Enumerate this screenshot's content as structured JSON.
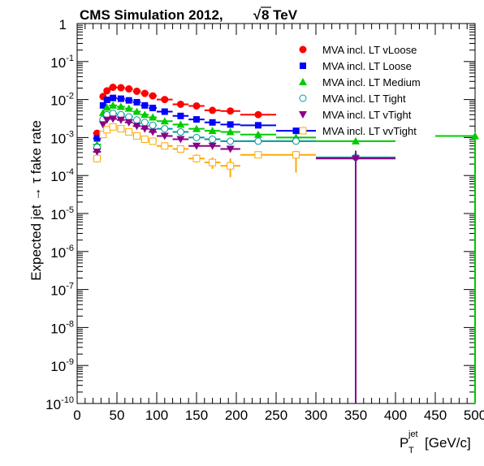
{
  "chart_data": {
    "type": "scatter",
    "title": "CMS Simulation 2012, ",
    "title_energy": "8 TeV",
    "title_root": "√",
    "ylabel": "Expected jet → τ fake rate",
    "xlabel_main": "P",
    "xlabel_sub": "T",
    "xlabel_sup": "jet",
    "xlabel_unit": "[GeV/c]",
    "xlim": [
      0,
      500
    ],
    "ylim_log10": [
      -10,
      0
    ],
    "yscale": "log",
    "grid": false,
    "legend_position": "top-right",
    "x_ticks": [
      "0",
      "50",
      "100",
      "150",
      "200",
      "250",
      "300",
      "350",
      "400",
      "450",
      "500"
    ],
    "y_ticks": [
      {
        "exp": 0,
        "base": "1",
        "sup": ""
      },
      {
        "exp": -1,
        "base": "10",
        "sup": "-1"
      },
      {
        "exp": -2,
        "base": "10",
        "sup": "-2"
      },
      {
        "exp": -3,
        "base": "10",
        "sup": "-3"
      },
      {
        "exp": -4,
        "base": "10",
        "sup": "-4"
      },
      {
        "exp": -5,
        "base": "10",
        "sup": "-5"
      },
      {
        "exp": -6,
        "base": "10",
        "sup": "-6"
      },
      {
        "exp": -7,
        "base": "10",
        "sup": "-7"
      },
      {
        "exp": -8,
        "base": "10",
        "sup": "-8"
      },
      {
        "exp": -9,
        "base": "10",
        "sup": "-9"
      },
      {
        "exp": -10,
        "base": "10",
        "sup": "-10"
      }
    ],
    "series": [
      {
        "name": "MVA incl. LT vLoose",
        "color": "#ff0000",
        "marker": "circle-filled",
        "points": [
          {
            "x": 25,
            "xlo": 20,
            "xhi": 30,
            "y": 0.0013,
            "ylo": 0.0011,
            "yhi": 0.0015
          },
          {
            "x": 32.5,
            "xlo": 30,
            "xhi": 35,
            "y": 0.012
          },
          {
            "x": 37.5,
            "xlo": 35,
            "xhi": 40,
            "y": 0.017
          },
          {
            "x": 45,
            "xlo": 40,
            "xhi": 50,
            "y": 0.021
          },
          {
            "x": 55,
            "xlo": 50,
            "xhi": 60,
            "y": 0.0205
          },
          {
            "x": 65,
            "xlo": 60,
            "xhi": 70,
            "y": 0.019
          },
          {
            "x": 75,
            "xlo": 70,
            "xhi": 80,
            "y": 0.0165
          },
          {
            "x": 85,
            "xlo": 80,
            "xhi": 90,
            "y": 0.0145
          },
          {
            "x": 95,
            "xlo": 90,
            "xhi": 100,
            "y": 0.0125
          },
          {
            "x": 110,
            "xlo": 100,
            "xhi": 120,
            "y": 0.01
          },
          {
            "x": 130,
            "xlo": 120,
            "xhi": 140,
            "y": 0.0075
          },
          {
            "x": 150,
            "xlo": 140,
            "xhi": 160,
            "y": 0.0068
          },
          {
            "x": 170,
            "xlo": 160,
            "xhi": 180,
            "y": 0.0052
          },
          {
            "x": 192.5,
            "xlo": 180,
            "xhi": 205,
            "y": 0.005
          },
          {
            "x": 227.5,
            "xlo": 205,
            "xhi": 250,
            "y": 0.004
          }
        ]
      },
      {
        "name": "MVA incl. LT Loose",
        "color": "#0000ff",
        "marker": "square-filled",
        "points": [
          {
            "x": 25,
            "xlo": 20,
            "xhi": 30,
            "y": 0.00095,
            "ylo": 0.0008,
            "yhi": 0.0011
          },
          {
            "x": 32.5,
            "xlo": 30,
            "xhi": 35,
            "y": 0.007
          },
          {
            "x": 37.5,
            "xlo": 35,
            "xhi": 40,
            "y": 0.0098
          },
          {
            "x": 45,
            "xlo": 40,
            "xhi": 50,
            "y": 0.011
          },
          {
            "x": 55,
            "xlo": 50,
            "xhi": 60,
            "y": 0.0105
          },
          {
            "x": 65,
            "xlo": 60,
            "xhi": 70,
            "y": 0.0095
          },
          {
            "x": 75,
            "xlo": 70,
            "xhi": 80,
            "y": 0.0085
          },
          {
            "x": 85,
            "xlo": 80,
            "xhi": 90,
            "y": 0.007
          },
          {
            "x": 95,
            "xlo": 90,
            "xhi": 100,
            "y": 0.006
          },
          {
            "x": 110,
            "xlo": 100,
            "xhi": 120,
            "y": 0.0048
          },
          {
            "x": 130,
            "xlo": 120,
            "xhi": 140,
            "y": 0.0037
          },
          {
            "x": 150,
            "xlo": 140,
            "xhi": 160,
            "y": 0.003
          },
          {
            "x": 170,
            "xlo": 160,
            "xhi": 180,
            "y": 0.0025
          },
          {
            "x": 192.5,
            "xlo": 180,
            "xhi": 205,
            "y": 0.0022
          },
          {
            "x": 227.5,
            "xlo": 205,
            "xhi": 250,
            "y": 0.0021
          },
          {
            "x": 275,
            "xlo": 250,
            "xhi": 300,
            "y": 0.0015
          }
        ]
      },
      {
        "name": "MVA incl. LT Medium",
        "color": "#00cc00",
        "marker": "triangle-up-filled",
        "points": [
          {
            "x": 25,
            "xlo": 20,
            "xhi": 30,
            "y": 0.00065,
            "ylo": 0.00055,
            "yhi": 0.00075
          },
          {
            "x": 32.5,
            "xlo": 30,
            "xhi": 35,
            "y": 0.0045
          },
          {
            "x": 37.5,
            "xlo": 35,
            "xhi": 40,
            "y": 0.0062
          },
          {
            "x": 45,
            "xlo": 40,
            "xhi": 50,
            "y": 0.007
          },
          {
            "x": 55,
            "xlo": 50,
            "xhi": 60,
            "y": 0.0065
          },
          {
            "x": 65,
            "xlo": 60,
            "xhi": 70,
            "y": 0.0058
          },
          {
            "x": 75,
            "xlo": 70,
            "xhi": 80,
            "y": 0.0048
          },
          {
            "x": 85,
            "xlo": 80,
            "xhi": 90,
            "y": 0.004
          },
          {
            "x": 95,
            "xlo": 90,
            "xhi": 100,
            "y": 0.0034
          },
          {
            "x": 110,
            "xlo": 100,
            "xhi": 120,
            "y": 0.0027
          },
          {
            "x": 130,
            "xlo": 120,
            "xhi": 140,
            "y": 0.0022
          },
          {
            "x": 150,
            "xlo": 140,
            "xhi": 160,
            "y": 0.0017
          },
          {
            "x": 170,
            "xlo": 160,
            "xhi": 180,
            "y": 0.0015
          },
          {
            "x": 192.5,
            "xlo": 180,
            "xhi": 205,
            "y": 0.0014
          },
          {
            "x": 227.5,
            "xlo": 205,
            "xhi": 250,
            "y": 0.0012
          },
          {
            "x": 275,
            "xlo": 250,
            "xhi": 300,
            "y": 0.001
          },
          {
            "x": 350,
            "xlo": 300,
            "xhi": 400,
            "y": 0.0008
          },
          {
            "x": 500,
            "xlo": 450,
            "xhi": 550,
            "y": 0.0011,
            "ylo": 1e-10,
            "yhi": 0.0011
          }
        ]
      },
      {
        "name": "MVA incl. LT Tight",
        "color": "#009999",
        "marker": "circle-open",
        "points": [
          {
            "x": 25,
            "xlo": 20,
            "xhi": 30,
            "y": 0.00055
          },
          {
            "x": 32.5,
            "xlo": 30,
            "xhi": 35,
            "y": 0.003
          },
          {
            "x": 37.5,
            "xlo": 35,
            "xhi": 40,
            "y": 0.004
          },
          {
            "x": 45,
            "xlo": 40,
            "xhi": 50,
            "y": 0.0043
          },
          {
            "x": 55,
            "xlo": 50,
            "xhi": 60,
            "y": 0.004
          },
          {
            "x": 65,
            "xlo": 60,
            "xhi": 70,
            "y": 0.0035
          },
          {
            "x": 75,
            "xlo": 70,
            "xhi": 80,
            "y": 0.0029
          },
          {
            "x": 85,
            "xlo": 80,
            "xhi": 90,
            "y": 0.0025
          },
          {
            "x": 95,
            "xlo": 90,
            "xhi": 100,
            "y": 0.0021
          },
          {
            "x": 110,
            "xlo": 100,
            "xhi": 120,
            "y": 0.0017
          },
          {
            "x": 130,
            "xlo": 120,
            "xhi": 140,
            "y": 0.0014
          },
          {
            "x": 150,
            "xlo": 140,
            "xhi": 160,
            "y": 0.001
          },
          {
            "x": 170,
            "xlo": 160,
            "xhi": 180,
            "y": 0.0009
          },
          {
            "x": 192.5,
            "xlo": 180,
            "xhi": 205,
            "y": 0.0008
          },
          {
            "x": 227.5,
            "xlo": 205,
            "xhi": 250,
            "y": 0.0008
          },
          {
            "x": 275,
            "xlo": 250,
            "xhi": 300,
            "y": 0.0008
          },
          {
            "x": 350,
            "xlo": 300,
            "xhi": 400,
            "y": 0.0003
          }
        ]
      },
      {
        "name": "MVA incl. LT vTight",
        "color": "#880088",
        "marker": "triangle-down-filled",
        "points": [
          {
            "x": 25,
            "xlo": 20,
            "xhi": 30,
            "y": 0.00042
          },
          {
            "x": 32.5,
            "xlo": 30,
            "xhi": 35,
            "y": 0.0022
          },
          {
            "x": 37.5,
            "xlo": 35,
            "xhi": 40,
            "y": 0.0029
          },
          {
            "x": 45,
            "xlo": 40,
            "xhi": 50,
            "y": 0.0031
          },
          {
            "x": 55,
            "xlo": 50,
            "xhi": 60,
            "y": 0.0029
          },
          {
            "x": 65,
            "xlo": 60,
            "xhi": 70,
            "y": 0.0025
          },
          {
            "x": 75,
            "xlo": 70,
            "xhi": 80,
            "y": 0.002
          },
          {
            "x": 85,
            "xlo": 80,
            "xhi": 90,
            "y": 0.0017
          },
          {
            "x": 95,
            "xlo": 90,
            "xhi": 100,
            "y": 0.0014
          },
          {
            "x": 110,
            "xlo": 100,
            "xhi": 120,
            "y": 0.0011
          },
          {
            "x": 130,
            "xlo": 120,
            "xhi": 140,
            "y": 0.0009
          },
          {
            "x": 150,
            "xlo": 140,
            "xhi": 160,
            "y": 0.0006
          },
          {
            "x": 170,
            "xlo": 160,
            "xhi": 180,
            "y": 0.0006
          },
          {
            "x": 192.5,
            "xlo": 180,
            "xhi": 205,
            "y": 0.0005
          },
          {
            "x": 350,
            "xlo": 300,
            "xhi": 400,
            "y": 0.00028,
            "ylo": 1e-10,
            "yhi": 0.00045
          }
        ]
      },
      {
        "name": "MVA incl. LT vvTight",
        "color": "#ffaa00",
        "marker": "square-open",
        "points": [
          {
            "x": 25,
            "xlo": 20,
            "xhi": 30,
            "y": 0.00028,
            "ylo": 0.00022,
            "yhi": 0.00034
          },
          {
            "x": 32.5,
            "xlo": 30,
            "xhi": 35,
            "y": 0.0012
          },
          {
            "x": 37.5,
            "xlo": 35,
            "xhi": 40,
            "y": 0.0016
          },
          {
            "x": 45,
            "xlo": 40,
            "xhi": 50,
            "y": 0.0019
          },
          {
            "x": 55,
            "xlo": 50,
            "xhi": 60,
            "y": 0.0017
          },
          {
            "x": 65,
            "xlo": 60,
            "xhi": 70,
            "y": 0.0014
          },
          {
            "x": 75,
            "xlo": 70,
            "xhi": 80,
            "y": 0.0011
          },
          {
            "x": 85,
            "xlo": 80,
            "xhi": 90,
            "y": 0.0009
          },
          {
            "x": 95,
            "xlo": 90,
            "xhi": 100,
            "y": 0.0008
          },
          {
            "x": 110,
            "xlo": 100,
            "xhi": 120,
            "y": 0.0006
          },
          {
            "x": 130,
            "xlo": 120,
            "xhi": 140,
            "y": 0.0005
          },
          {
            "x": 150,
            "xlo": 140,
            "xhi": 160,
            "y": 0.00028,
            "ylo": 0.00022,
            "yhi": 0.00036
          },
          {
            "x": 170,
            "xlo": 160,
            "xhi": 180,
            "y": 0.00022,
            "ylo": 0.00015,
            "yhi": 0.0003
          },
          {
            "x": 192.5,
            "xlo": 180,
            "xhi": 205,
            "y": 0.00018,
            "ylo": 9e-05,
            "yhi": 0.00028
          },
          {
            "x": 227.5,
            "xlo": 205,
            "xhi": 250,
            "y": 0.00035
          },
          {
            "x": 275,
            "xlo": 250,
            "xhi": 300,
            "y": 0.00035,
            "ylo": 0.00012,
            "yhi": 0.00045
          }
        ]
      }
    ]
  }
}
